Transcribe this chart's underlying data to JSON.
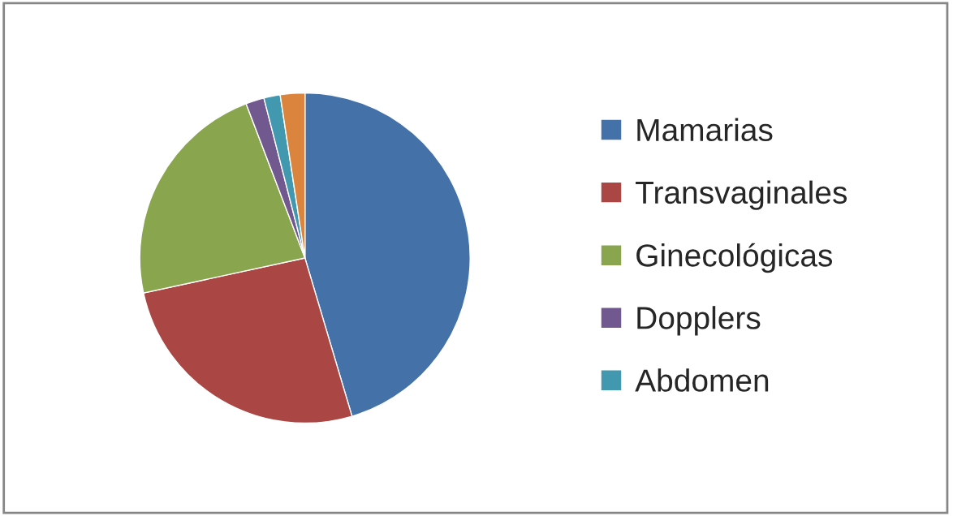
{
  "chart_data": {
    "type": "pie",
    "categories": [
      "Mamarias",
      "Transvaginales",
      "Ginecológicas",
      "Dopplers",
      "Abdomen",
      null
    ],
    "values": [
      45.4,
      26.2,
      22.6,
      1.8,
      1.6,
      2.4
    ],
    "colors": [
      "#4472a8",
      "#aa4643",
      "#89a54e",
      "#71588f",
      "#4198af",
      "#db843d"
    ],
    "legend": "right"
  }
}
